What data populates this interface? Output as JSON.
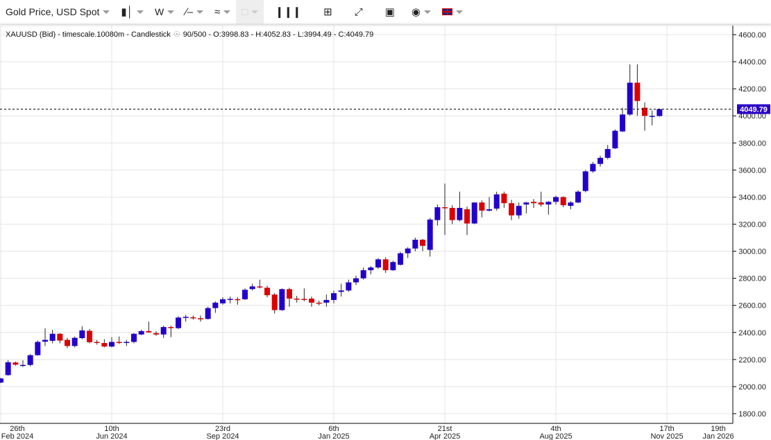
{
  "toolbar": {
    "instrument": "Gold Price, USD Spot",
    "interval": "W",
    "items": [
      {
        "name": "chart-type-candlestick",
        "icon": "candlestick-icon",
        "dropdown": true
      },
      {
        "name": "interval",
        "label": "W",
        "dropdown": true
      },
      {
        "name": "drawing-tools",
        "icon": "line-tool-icon",
        "dropdown": true
      },
      {
        "name": "indicators",
        "icon": "indicator-icon",
        "dropdown": true
      },
      {
        "name": "delete",
        "icon": "trash-icon",
        "dropdown": true,
        "disabled": true
      },
      {
        "name": "volume",
        "icon": "bar-chart-icon"
      },
      {
        "name": "crosshair",
        "icon": "crosshair-icon"
      },
      {
        "name": "fullscreen",
        "icon": "expand-icon"
      },
      {
        "name": "fit",
        "icon": "frame-icon"
      },
      {
        "name": "theme",
        "icon": "palette-icon",
        "dropdown": true
      },
      {
        "name": "language",
        "icon": "uk-flag-icon",
        "dropdown": true
      }
    ]
  },
  "info": {
    "symbol": "XAUUSD (Bid) - timescale.10080m - Candlestick",
    "count": "90/500",
    "ohlc": "- O:3998.83 - H:4052.83 - L:3994.49 - C:4049.79"
  },
  "colors": {
    "up": "#2200cc",
    "down": "#dd0000",
    "price_tag": "#2a00c8",
    "grid": "#e4e4e4"
  },
  "chart_data": {
    "type": "candlestick",
    "title": "",
    "ylim": [
      1800,
      4600
    ],
    "yticks": [
      "1800.00",
      "2000.00",
      "2200.00",
      "2400.00",
      "2600.00",
      "2800.00",
      "3000.00",
      "3200.00",
      "3400.00",
      "3600.00",
      "3800.00",
      "4000.00",
      "4200.00",
      "4400.00",
      "4600.00"
    ],
    "xticks": [
      {
        "week": 0,
        "label1": "26th",
        "label2": "Feb 2024"
      },
      {
        "week": 15,
        "label1": "10th",
        "label2": "Jun 2024"
      },
      {
        "week": 30,
        "label1": "23rd",
        "label2": "Sep 2024"
      },
      {
        "week": 45,
        "label1": "6th",
        "label2": "Jan 2025"
      },
      {
        "week": 60,
        "label1": "21st",
        "label2": "Apr 2025"
      },
      {
        "week": 75,
        "label1": "4th",
        "label2": "Aug 2025"
      },
      {
        "week": 90,
        "label1": "17th",
        "label2": "Nov 2025"
      },
      {
        "week": 99,
        "label1": "19th",
        "label2": "Jan 2026"
      }
    ],
    "first_week": "2024-02-26",
    "last_price": "4049.79",
    "last_value": 4049.79,
    "ohlc": [
      [
        2030,
        2065,
        2025,
        2060
      ],
      [
        2085,
        2195,
        2080,
        2180
      ],
      [
        2178,
        2185,
        2155,
        2162
      ],
      [
        2158,
        2195,
        2145,
        2160
      ],
      [
        2160,
        2240,
        2150,
        2232
      ],
      [
        2232,
        2340,
        2228,
        2330
      ],
      [
        2332,
        2430,
        2300,
        2345
      ],
      [
        2338,
        2420,
        2320,
        2390
      ],
      [
        2390,
        2395,
        2320,
        2340
      ],
      [
        2345,
        2360,
        2285,
        2300
      ],
      [
        2300,
        2370,
        2290,
        2360
      ],
      [
        2358,
        2445,
        2350,
        2415
      ],
      [
        2412,
        2425,
        2320,
        2328
      ],
      [
        2330,
        2345,
        2310,
        2325
      ],
      [
        2322,
        2350,
        2290,
        2296
      ],
      [
        2296,
        2365,
        2290,
        2330
      ],
      [
        2330,
        2370,
        2315,
        2325
      ],
      [
        2325,
        2345,
        2300,
        2330
      ],
      [
        2330,
        2395,
        2320,
        2390
      ],
      [
        2385,
        2420,
        2380,
        2410
      ],
      [
        2410,
        2480,
        2400,
        2400
      ],
      [
        2395,
        2410,
        2375,
        2385
      ],
      [
        2385,
        2450,
        2360,
        2440
      ],
      [
        2440,
        2450,
        2365,
        2432
      ],
      [
        2432,
        2520,
        2425,
        2510
      ],
      [
        2510,
        2530,
        2480,
        2515
      ],
      [
        2512,
        2525,
        2495,
        2505
      ],
      [
        2505,
        2525,
        2480,
        2500
      ],
      [
        2500,
        2590,
        2495,
        2580
      ],
      [
        2580,
        2630,
        2545,
        2620
      ],
      [
        2615,
        2660,
        2605,
        2645
      ],
      [
        2645,
        2665,
        2615,
        2648
      ],
      [
        2646,
        2660,
        2605,
        2645
      ],
      [
        2645,
        2725,
        2640,
        2715
      ],
      [
        2720,
        2760,
        2710,
        2740
      ],
      [
        2740,
        2790,
        2725,
        2735
      ],
      [
        2730,
        2745,
        2660,
        2675
      ],
      [
        2680,
        2690,
        2540,
        2565
      ],
      [
        2565,
        2725,
        2560,
        2720
      ],
      [
        2720,
        2730,
        2590,
        2650
      ],
      [
        2650,
        2670,
        2620,
        2648
      ],
      [
        2648,
        2725,
        2630,
        2645
      ],
      [
        2650,
        2665,
        2590,
        2620
      ],
      [
        2620,
        2635,
        2600,
        2618
      ],
      [
        2620,
        2680,
        2590,
        2640
      ],
      [
        2640,
        2710,
        2615,
        2690
      ],
      [
        2700,
        2760,
        2665,
        2710
      ],
      [
        2710,
        2790,
        2700,
        2770
      ],
      [
        2770,
        2820,
        2750,
        2800
      ],
      [
        2800,
        2880,
        2790,
        2860
      ],
      [
        2860,
        2890,
        2830,
        2880
      ],
      [
        2880,
        2950,
        2870,
        2940
      ],
      [
        2940,
        2955,
        2840,
        2860
      ],
      [
        2860,
        2930,
        2855,
        2920
      ],
      [
        2900,
        2995,
        2895,
        2985
      ],
      [
        2985,
        3030,
        2950,
        3020
      ],
      [
        3020,
        3100,
        3000,
        3085
      ],
      [
        3085,
        3090,
        3000,
        3040
      ],
      [
        3010,
        3245,
        2960,
        3234
      ],
      [
        3230,
        3345,
        3190,
        3325
      ],
      [
        3325,
        3500,
        3120,
        3320
      ],
      [
        3320,
        3340,
        3200,
        3230
      ],
      [
        3230,
        3440,
        3220,
        3320
      ],
      [
        3310,
        3330,
        3120,
        3205
      ],
      [
        3205,
        3360,
        3200,
        3360
      ],
      [
        3360,
        3375,
        3250,
        3300
      ],
      [
        3300,
        3400,
        3295,
        3310
      ],
      [
        3315,
        3440,
        3300,
        3420
      ],
      [
        3425,
        3440,
        3320,
        3355
      ],
      [
        3355,
        3380,
        3230,
        3265
      ],
      [
        3265,
        3360,
        3240,
        3335
      ],
      [
        3345,
        3365,
        3280,
        3360
      ],
      [
        3365,
        3385,
        3320,
        3355
      ],
      [
        3360,
        3440,
        3330,
        3345
      ],
      [
        3345,
        3370,
        3270,
        3365
      ],
      [
        3365,
        3410,
        3345,
        3400
      ],
      [
        3400,
        3405,
        3325,
        3340
      ],
      [
        3335,
        3370,
        3310,
        3360
      ],
      [
        3360,
        3450,
        3355,
        3440
      ],
      [
        3445,
        3600,
        3435,
        3590
      ],
      [
        3590,
        3660,
        3580,
        3645
      ],
      [
        3645,
        3705,
        3625,
        3690
      ],
      [
        3690,
        3785,
        3680,
        3755
      ],
      [
        3760,
        3900,
        3755,
        3890
      ],
      [
        3885,
        4060,
        3880,
        4010
      ],
      [
        4010,
        4380,
        4000,
        4245
      ],
      [
        4245,
        4380,
        4000,
        4110
      ],
      [
        4060,
        4100,
        3890,
        4000
      ],
      [
        4000,
        4040,
        3930,
        4000
      ],
      [
        3998.83,
        4052.83,
        3994.49,
        4049.79
      ]
    ]
  }
}
